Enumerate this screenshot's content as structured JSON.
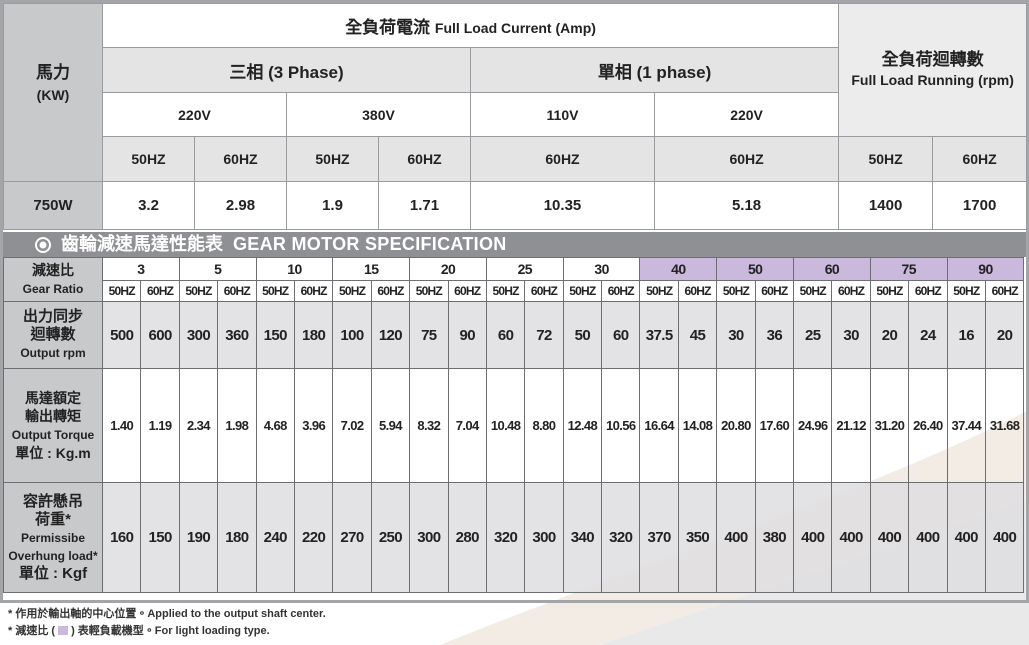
{
  "top_table": {
    "power_label": "馬力",
    "power_unit": "(KW)",
    "current_title_zh": "全負荷電流",
    "current_title_en": "Full Load Current (Amp)",
    "three_phase": "三相 (3 Phase)",
    "single_phase": "單相 (1 phase)",
    "rpm_title_zh": "全負荷迴轉數",
    "rpm_title_en": "Full Load Running (rpm)",
    "voltages": [
      "220V",
      "380V",
      "110V",
      "220V"
    ],
    "freqs": [
      "50HZ",
      "60HZ",
      "50HZ",
      "60HZ",
      "60HZ",
      "60HZ",
      "50HZ",
      "60HZ"
    ],
    "power": "750W",
    "values": [
      "3.2",
      "2.98",
      "1.9",
      "1.71",
      "10.35",
      "5.18",
      "1400",
      "1700"
    ]
  },
  "section_title": {
    "zh": "齒輪減速馬達性能表",
    "en": "GEAR MOTOR SPECIFICATION"
  },
  "gear_table": {
    "ratio_label": [
      "減速比",
      "Gear Ratio"
    ],
    "ratios": [
      "3",
      "5",
      "10",
      "15",
      "20",
      "25",
      "30",
      "40",
      "50",
      "60",
      "75",
      "90"
    ],
    "light_loading": [
      false,
      false,
      false,
      false,
      false,
      false,
      false,
      true,
      true,
      true,
      true,
      true
    ],
    "freqs": [
      "50HZ",
      "60HZ",
      "50HZ",
      "60HZ",
      "50HZ",
      "60HZ",
      "50HZ",
      "60HZ",
      "50HZ",
      "60HZ",
      "50HZ",
      "60HZ",
      "50HZ",
      "60HZ",
      "50HZ",
      "60HZ",
      "50HZ",
      "60HZ",
      "50HZ",
      "60HZ",
      "50HZ",
      "60HZ",
      "50HZ",
      "60HZ"
    ],
    "rows": [
      {
        "label": [
          "出力同步",
          "迴轉數",
          "Output rpm"
        ],
        "values": [
          "500",
          "600",
          "300",
          "360",
          "150",
          "180",
          "100",
          "120",
          "75",
          "90",
          "60",
          "72",
          "50",
          "60",
          "37.5",
          "45",
          "30",
          "36",
          "25",
          "30",
          "20",
          "24",
          "16",
          "20"
        ]
      },
      {
        "label": [
          "馬達額定",
          "輸出轉矩",
          "Output Torque",
          "單位 : Kg.m"
        ],
        "values": [
          "1.40",
          "1.19",
          "2.34",
          "1.98",
          "4.68",
          "3.96",
          "7.02",
          "5.94",
          "8.32",
          "7.04",
          "10.48",
          "8.80",
          "12.48",
          "10.56",
          "16.64",
          "14.08",
          "20.80",
          "17.60",
          "24.96",
          "21.12",
          "31.20",
          "26.40",
          "37.44",
          "31.68"
        ]
      },
      {
        "label": [
          "容許懸吊",
          "荷重*",
          "Permissibe",
          "Overhung load*",
          "單位 : Kgf"
        ],
        "values": [
          "160",
          "150",
          "190",
          "180",
          "240",
          "220",
          "270",
          "250",
          "300",
          "280",
          "320",
          "300",
          "340",
          "320",
          "370",
          "350",
          "400",
          "380",
          "400",
          "400",
          "400",
          "400",
          "400",
          "400"
        ]
      }
    ]
  },
  "footnotes": {
    "note1": "* 作用於輸出軸的中心位置。Applied to the output shaft center.",
    "note2_before": "* 減速比 (",
    "note2_after": ") 表輕負載機型。For light loading type."
  }
}
